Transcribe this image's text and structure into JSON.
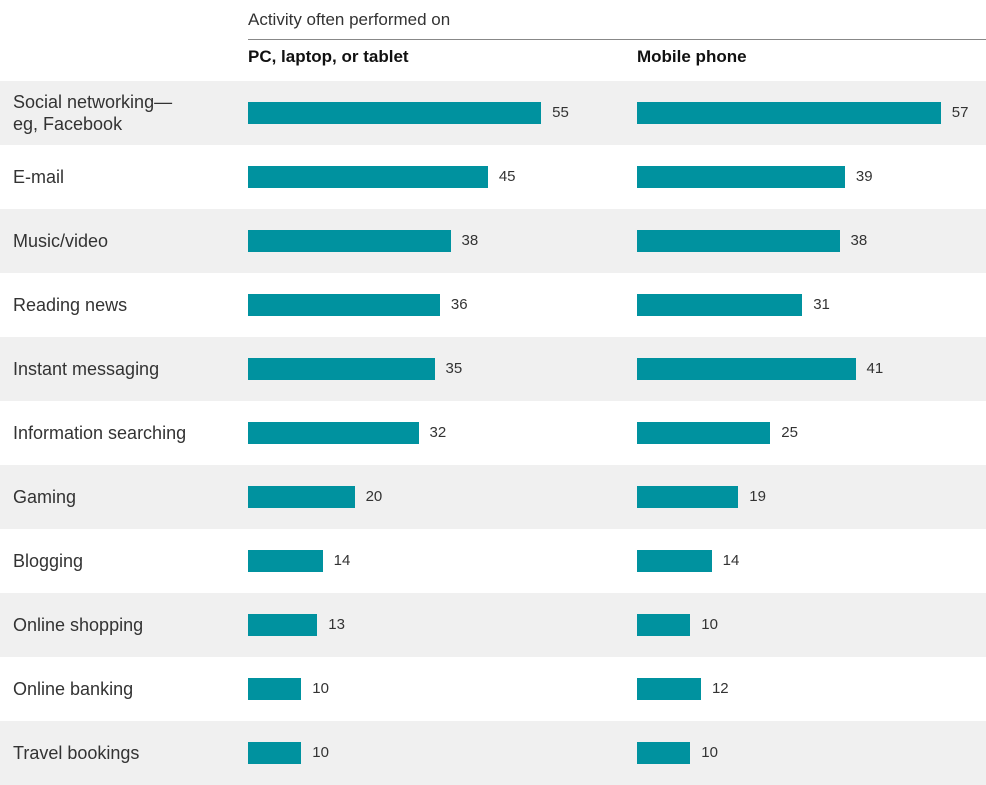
{
  "chart_data": {
    "type": "bar",
    "title": "Activity often performed on",
    "categories": [
      "Social networking—eg, Facebook",
      "E-mail",
      "Music/video",
      "Reading news",
      "Instant messaging",
      "Information searching",
      "Gaming",
      "Blogging",
      "Online shopping",
      "Online banking",
      "Travel bookings"
    ],
    "series": [
      {
        "name": "PC, laptop, or tablet",
        "color": "#00929f",
        "values": [
          55,
          45,
          38,
          36,
          35,
          32,
          20,
          14,
          13,
          10,
          10
        ]
      },
      {
        "name": "Mobile phone",
        "color": "#00929f",
        "values": [
          57,
          39,
          38,
          31,
          41,
          25,
          19,
          14,
          10,
          12,
          10
        ]
      }
    ],
    "row_shading": "#f0f0f0"
  }
}
